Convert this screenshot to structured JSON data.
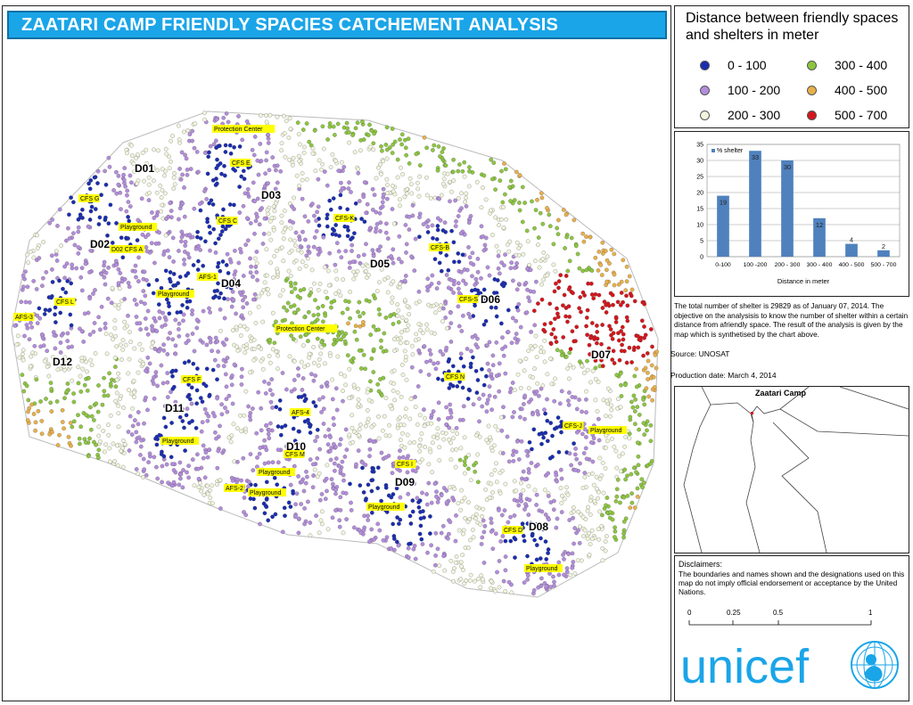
{
  "title": "ZAATARI CAMP FRIENDLY SPACIES CATCHEMENT ANALYSIS",
  "legend": {
    "title": "Distance between friendly spaces and shelters in meter",
    "items": [
      {
        "label": "0 - 100",
        "color": "#1a2db0"
      },
      {
        "label": "100 - 200",
        "color": "#b38ddb"
      },
      {
        "label": "200 - 300",
        "color": "#f1f5dd"
      },
      {
        "label": "300 - 400",
        "color": "#8cc63f"
      },
      {
        "label": "400 - 500",
        "color": "#e8b04a"
      },
      {
        "label": "500 - 700",
        "color": "#d4161c"
      }
    ]
  },
  "chart_data": {
    "type": "bar",
    "series_name": "% shelter",
    "categories": [
      "0-100",
      "100 -200",
      "200 - 300",
      "300 - 400",
      "400 - 500",
      "500 - 700"
    ],
    "values": [
      19,
      33,
      30,
      12,
      4,
      2
    ],
    "xlabel": "Distance in meter",
    "ylim": [
      0,
      35
    ],
    "yticks": [
      0,
      5,
      10,
      15,
      20,
      25,
      30,
      35
    ],
    "bar_color": "#4f81bd"
  },
  "notes": "The total number of shelter is 29829 as of January 07, 2014. The objective on the analysisis to know the number  of shelter within a certain distance from afriendly space. The result of the analysis is given by the map which is synthetised by the chart above.",
  "source": "Source: UNOSAT",
  "production_date": "Production date: March 4, 2014",
  "inset": {
    "label": "Zaatari Camp"
  },
  "disclaimer": {
    "title": "Disclaimers:",
    "text": "The boundaries and names shown and the designations used on this map do not imply official endorsement or acceptance by the United Nations."
  },
  "scale": {
    "ticks": [
      "0",
      "0.25",
      "0.5",
      "1"
    ]
  },
  "logo": "unicef",
  "map": {
    "districts": [
      "D01",
      "D02",
      "D03",
      "D04",
      "D05",
      "D06",
      "D07",
      "D08",
      "D09",
      "D10",
      "D11",
      "D12"
    ],
    "facility_labels": [
      "Protection Center",
      "CFS E",
      "CFS G",
      "Playground",
      "D02 CFS A",
      "CFS C",
      "AFS-1",
      "Playground",
      "CFS L",
      "AFS-3",
      "CFS-K",
      "CFS-B",
      "CFS-S",
      "Protection Center",
      "CFS F",
      "AFS-4",
      "Playground",
      "CFS M",
      "Playground",
      "AFS-2",
      "Playground",
      "CFS N",
      "CFS-J",
      "Playground",
      "CFS I",
      "Playground",
      "CFS D",
      "Playground"
    ]
  }
}
